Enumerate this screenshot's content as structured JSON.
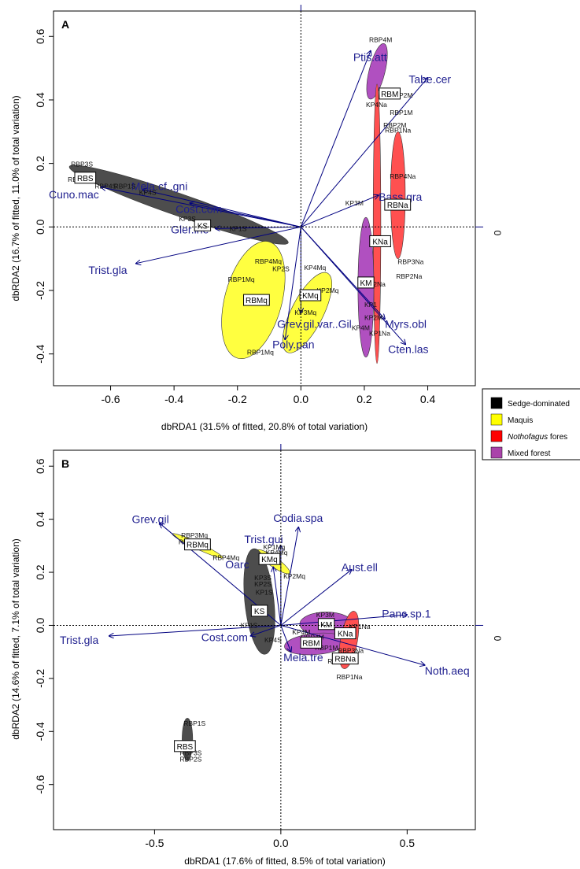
{
  "legend": {
    "position": "right",
    "items": [
      {
        "label": "Sedge-dominated",
        "color": "#000000"
      },
      {
        "label": "Maquis",
        "color": "#ffff00"
      },
      {
        "label": "Nothofagus fores",
        "color": "#ff0000"
      },
      {
        "label": "Mixed forest",
        "color": "#aa44aa"
      }
    ]
  },
  "colors": {
    "sedge": "#4d4d4d",
    "maquis": "#ffff40",
    "notho": "#ff5050",
    "mixed": "#b050c0",
    "arrow": "#000080",
    "species": "#1f1f8f"
  },
  "chart_data": [
    {
      "type": "scatter",
      "panel": "A",
      "xlabel": "dbRDA1 (31.5% of fitted, 20.8% of total variation)",
      "ylabel": "dbRDA2 (16.7% of fitted, 11.0% of total variation)",
      "xlim": [
        -0.78,
        0.55
      ],
      "ylim": [
        -0.5,
        0.68
      ],
      "xticks": [
        -0.6,
        -0.4,
        -0.2,
        0.0,
        0.2,
        0.4
      ],
      "xtick_labels": [
        "-0.6",
        "-0.4",
        "-0.2",
        "0.0",
        "0.2",
        "0.4"
      ],
      "yticks": [
        -0.4,
        -0.2,
        0.0,
        0.2,
        0.4,
        0.6
      ],
      "ytick_labels": [
        "-0.4",
        "-0.2",
        "0.0",
        "0.2",
        "0.4",
        "0.6"
      ],
      "right_label": "0",
      "ellipses": [
        {
          "group": "sedge",
          "x1": -0.73,
          "y1": 0.19,
          "x2": -0.04,
          "y2": -0.05,
          "w": 0.035
        },
        {
          "group": "maquis",
          "cx": -0.15,
          "cy": -0.23,
          "rx": 0.19,
          "ry": 0.09,
          "angle": 75
        },
        {
          "group": "maquis",
          "cx": 0.02,
          "cy": -0.27,
          "rx": 0.14,
          "ry": 0.05,
          "angle": 63
        },
        {
          "group": "mixed",
          "cx": 0.24,
          "cy": 0.49,
          "rx": 0.09,
          "ry": 0.025,
          "angle": 76
        },
        {
          "group": "notho",
          "cx": 0.24,
          "cy": 0.01,
          "rx": 0.44,
          "ry": 0.012,
          "angle": 90
        },
        {
          "group": "notho",
          "cx": 0.306,
          "cy": 0.1,
          "rx": 0.2,
          "ry": 0.023,
          "angle": 90
        },
        {
          "group": "mixed",
          "cx": 0.205,
          "cy": -0.19,
          "rx": 0.22,
          "ry": 0.025,
          "angle": 90
        }
      ],
      "centroids": [
        {
          "label": "RBS",
          "x": -0.68,
          "y": 0.155
        },
        {
          "label": "KS",
          "x": -0.31,
          "y": 0.005
        },
        {
          "label": "RBMq",
          "x": -0.14,
          "y": -0.23
        },
        {
          "label": "KMq",
          "x": 0.03,
          "y": -0.215
        },
        {
          "label": "RBM",
          "x": 0.28,
          "y": 0.42
        },
        {
          "label": "RBNa",
          "x": 0.305,
          "y": 0.07
        },
        {
          "label": "KNa",
          "x": 0.25,
          "y": -0.045
        },
        {
          "label": "KM",
          "x": 0.205,
          "y": -0.175
        }
      ],
      "site_labels": [
        {
          "label": "RBP3S",
          "x": -0.725,
          "y": 0.198
        },
        {
          "label": "RBP",
          "x": -0.735,
          "y": 0.15
        },
        {
          "label": "RBP4S",
          "x": -0.65,
          "y": 0.128
        },
        {
          "label": "RBP1S",
          "x": -0.59,
          "y": 0.128
        },
        {
          "label": "KP4S",
          "x": -0.51,
          "y": 0.108
        },
        {
          "label": "KP3S",
          "x": -0.385,
          "y": 0.025
        },
        {
          "label": "KP1S",
          "x": -0.225,
          "y": -0.005
        },
        {
          "label": "RBP4Mq",
          "x": -0.145,
          "y": -0.108
        },
        {
          "label": "KP2S",
          "x": -0.09,
          "y": -0.132
        },
        {
          "label": "RBP1Mq",
          "x": -0.23,
          "y": -0.165
        },
        {
          "label": "RBP1Mq",
          "x": -0.17,
          "y": -0.395
        },
        {
          "label": "KP4Mq",
          "x": 0.01,
          "y": -0.128
        },
        {
          "label": "KP2Mq",
          "x": 0.05,
          "y": -0.2
        },
        {
          "label": "KP3Mq",
          "x": -0.02,
          "y": -0.27
        },
        {
          "label": "RBP4M",
          "x": 0.215,
          "y": 0.59
        },
        {
          "label": "RBP2M",
          "x": 0.28,
          "y": 0.415
        },
        {
          "label": "KP4Na",
          "x": 0.205,
          "y": 0.385
        },
        {
          "label": "RBP1M",
          "x": 0.28,
          "y": 0.36
        },
        {
          "label": "RBP2M",
          "x": 0.26,
          "y": 0.32
        },
        {
          "label": "RBP1Na",
          "x": 0.265,
          "y": 0.305
        },
        {
          "label": "RBP4Na",
          "x": 0.28,
          "y": 0.16
        },
        {
          "label": "KP3M",
          "x": 0.14,
          "y": 0.075
        },
        {
          "label": "RBP3Na",
          "x": 0.305,
          "y": -0.11
        },
        {
          "label": "RBP2Na",
          "x": 0.3,
          "y": -0.155
        },
        {
          "label": "KP2Na",
          "x": 0.2,
          "y": -0.18
        },
        {
          "label": "KP1",
          "x": 0.2,
          "y": -0.245
        },
        {
          "label": "KP2M",
          "x": 0.2,
          "y": -0.285
        },
        {
          "label": "KP4M",
          "x": 0.16,
          "y": -0.318
        },
        {
          "label": "KP1Na",
          "x": 0.215,
          "y": -0.335
        }
      ],
      "vectors": [
        {
          "label": "Ptis.att",
          "x": 0.22,
          "y": 0.555,
          "lx": 0.165,
          "ly": 0.535
        },
        {
          "label": "Tabe.cer",
          "x": 0.4,
          "y": 0.47,
          "lx": 0.34,
          "ly": 0.465
        },
        {
          "label": "Bass.gra",
          "x": 0.245,
          "y": 0.1,
          "lx": 0.245,
          "ly": 0.095
        },
        {
          "label": "Cuno.mac",
          "x": -0.63,
          "y": 0.125,
          "lx": -0.795,
          "ly": 0.103
        },
        {
          "label": "Mela.cf..gni",
          "x": -0.5,
          "y": 0.118,
          "lx": -0.535,
          "ly": 0.128
        },
        {
          "label": "Cost.com",
          "x": -0.35,
          "y": 0.075,
          "lx": -0.395,
          "ly": 0.057
        },
        {
          "label": "Gler.ine",
          "x": -0.27,
          "y": -0.005,
          "lx": -0.41,
          "ly": -0.008
        },
        {
          "label": "Trist.gla",
          "x": -0.52,
          "y": -0.115,
          "lx": -0.67,
          "ly": -0.135
        },
        {
          "label": "Grev.gil.var..Gil",
          "x": 0.0,
          "y": -0.27,
          "lx": -0.075,
          "ly": -0.305
        },
        {
          "label": "Poly.pan",
          "x": -0.05,
          "y": -0.355,
          "lx": -0.09,
          "ly": -0.37
        },
        {
          "label": "Myrs.obl",
          "x": 0.265,
          "y": -0.29,
          "lx": 0.265,
          "ly": -0.305
        },
        {
          "label": "Cten.las",
          "x": 0.33,
          "y": -0.37,
          "lx": 0.275,
          "ly": -0.385
        }
      ]
    },
    {
      "type": "scatter",
      "panel": "B",
      "xlabel": "dbRDA1 (17.6% of fitted, 8.5% of total variation)",
      "ylabel": "dbRDA2 (14.6% of fitted, 7.1% of total variation)",
      "xlim": [
        -0.9,
        0.77
      ],
      "ylim": [
        -0.77,
        0.66
      ],
      "xticks": [
        -0.5,
        0.0,
        0.5
      ],
      "xtick_labels": [
        "-0.5",
        "0.0",
        "0.5"
      ],
      "yticks": [
        -0.6,
        -0.4,
        -0.2,
        0.0,
        0.2,
        0.4,
        0.6
      ],
      "ytick_labels": [
        "-0.6",
        "-0.4",
        "-0.2",
        "0.0",
        "0.2",
        "0.4",
        "0.6"
      ],
      "right_label": "0",
      "ellipses": [
        {
          "group": "maquis",
          "x1": -0.43,
          "y1": 0.345,
          "x2": -0.23,
          "y2": 0.255,
          "w": 0.012
        },
        {
          "group": "maquis",
          "cx": -0.03,
          "cy": 0.24,
          "rx": 0.075,
          "ry": 0.018,
          "angle": -35
        },
        {
          "group": "sedge",
          "cx": -0.085,
          "cy": 0.09,
          "rx": 0.2,
          "ry": 0.055,
          "angle": 96
        },
        {
          "group": "mixed",
          "cx": 0.18,
          "cy": 0.005,
          "rx": 0.1,
          "ry": 0.045,
          "angle": 0
        },
        {
          "group": "mixed",
          "cx": 0.14,
          "cy": -0.07,
          "rx": 0.12,
          "ry": 0.04,
          "angle": 5
        },
        {
          "group": "notho",
          "cx": 0.27,
          "cy": -0.055,
          "rx": 0.11,
          "ry": 0.032,
          "angle": 80
        },
        {
          "group": "sedge",
          "cx": -0.37,
          "cy": -0.43,
          "rx": 0.08,
          "ry": 0.02,
          "angle": 90
        }
      ],
      "centroids": [
        {
          "label": "RBMq",
          "x": -0.33,
          "y": 0.305
        },
        {
          "label": "KMq",
          "x": -0.045,
          "y": 0.25
        },
        {
          "label": "KS",
          "x": -0.085,
          "y": 0.055
        },
        {
          "label": "KM",
          "x": 0.18,
          "y": 0.005
        },
        {
          "label": "KNa",
          "x": 0.255,
          "y": -0.03
        },
        {
          "label": "RBM",
          "x": 0.12,
          "y": -0.065
        },
        {
          "label": "RBNa",
          "x": 0.255,
          "y": -0.125
        },
        {
          "label": "RBS",
          "x": -0.38,
          "y": -0.455
        }
      ],
      "site_labels": [
        {
          "label": "RBP3Mq",
          "x": -0.395,
          "y": 0.34
        },
        {
          "label": "RBP2Mq",
          "x": -0.405,
          "y": 0.315
        },
        {
          "label": "RBP4Mq",
          "x": -0.27,
          "y": 0.255
        },
        {
          "label": "KP1Mq",
          "x": -0.07,
          "y": 0.295
        },
        {
          "label": "KP4Mq",
          "x": -0.06,
          "y": 0.275
        },
        {
          "label": "KP2Mq",
          "x": 0.01,
          "y": 0.185
        },
        {
          "label": "KP3S",
          "x": -0.105,
          "y": 0.18
        },
        {
          "label": "KP2S",
          "x": -0.105,
          "y": 0.155
        },
        {
          "label": "KP1S",
          "x": -0.1,
          "y": 0.125
        },
        {
          "label": "KP1S",
          "x": -0.16,
          "y": 0.0
        },
        {
          "label": "KP4S",
          "x": -0.065,
          "y": -0.055
        },
        {
          "label": "KP4M",
          "x": 0.045,
          "y": -0.025
        },
        {
          "label": "KP3M",
          "x": 0.14,
          "y": 0.04
        },
        {
          "label": "KP1Na",
          "x": 0.27,
          "y": -0.005
        },
        {
          "label": "RBP4M",
          "x": 0.08,
          "y": -0.045
        },
        {
          "label": "RBP1M",
          "x": 0.135,
          "y": -0.085
        },
        {
          "label": "RBP3Na",
          "x": 0.225,
          "y": -0.095
        },
        {
          "label": "RBP2Na",
          "x": 0.185,
          "y": -0.135
        },
        {
          "label": "RBP1Na",
          "x": 0.22,
          "y": -0.195
        },
        {
          "label": "RBP1S",
          "x": -0.385,
          "y": -0.37
        },
        {
          "label": "RBP3S",
          "x": -0.4,
          "y": -0.48
        },
        {
          "label": "RBP2S",
          "x": -0.4,
          "y": -0.505
        }
      ],
      "vectors": [
        {
          "label": "Grev.gil",
          "x": -0.48,
          "y": 0.385,
          "lx": -0.59,
          "ly": 0.4
        },
        {
          "label": "Codia.spa",
          "x": 0.07,
          "y": 0.37,
          "lx": -0.03,
          "ly": 0.405
        },
        {
          "label": "Trist.gui",
          "x": 0.0,
          "y": 0.3,
          "lx": -0.145,
          "ly": 0.325
        },
        {
          "label": "Oarc",
          "x": -0.03,
          "y": 0.22,
          "lx": -0.22,
          "ly": 0.23
        },
        {
          "label": "Aust.ell",
          "x": 0.28,
          "y": 0.21,
          "lx": 0.24,
          "ly": 0.22
        },
        {
          "label": "Panc.sp.1",
          "x": 0.5,
          "y": 0.04,
          "lx": 0.4,
          "ly": 0.045
        },
        {
          "label": "Noth.aeq",
          "x": 0.57,
          "y": -0.15,
          "lx": 0.57,
          "ly": -0.17
        },
        {
          "label": "Trist.gla",
          "x": -0.68,
          "y": -0.04,
          "lx": -0.875,
          "ly": -0.055
        },
        {
          "label": "Cost.com",
          "x": -0.12,
          "y": -0.04,
          "lx": -0.315,
          "ly": -0.045
        },
        {
          "label": "Mela.tre",
          "x": 0.04,
          "y": -0.1,
          "lx": 0.01,
          "ly": -0.12
        }
      ]
    }
  ]
}
